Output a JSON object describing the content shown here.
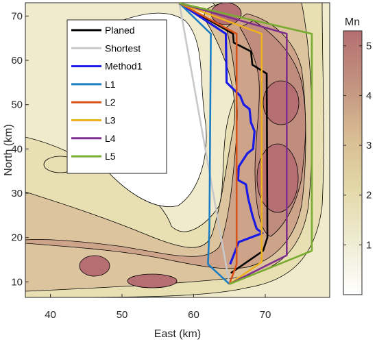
{
  "chart_data": {
    "type": "contour",
    "xlabel": "East (km)",
    "ylabel": "North (km)",
    "xlim": [
      36.5,
      79
    ],
    "ylim": [
      6.5,
      73
    ],
    "xticks": [
      40,
      50,
      60,
      70
    ],
    "yticks": [
      10,
      20,
      30,
      40,
      50,
      60,
      70
    ],
    "colorbar": {
      "label": "Mn",
      "range": [
        0,
        5.3
      ],
      "ticks": [
        1,
        2,
        3,
        4,
        5
      ],
      "colors": [
        "#ffffff",
        "#efecd3",
        "#e3d8a8",
        "#d3b690",
        "#bc8a7d",
        "#b56f72"
      ]
    },
    "series": [
      {
        "name": "Planed",
        "color": "#000000",
        "x": [
          58,
          65.5,
          65.6,
          68,
          68.2,
          70.2,
          70.3,
          69.7,
          65.2
        ],
        "y": [
          72.9,
          66,
          64,
          62,
          59,
          57,
          20,
          17,
          12
        ]
      },
      {
        "name": "Shortest",
        "color": "#c8c8c8",
        "x": [
          58,
          65
        ],
        "y": [
          72.9,
          9.5
        ]
      },
      {
        "name": "Method1",
        "color": "#1a1ae6",
        "x": [
          58,
          64.5,
          64.6,
          66.5,
          67,
          67.8,
          68,
          68.5,
          68.3,
          67.5,
          66.3,
          66.2,
          67.3,
          67.6,
          68.2,
          68.8,
          69.6,
          66.3,
          65.1
        ],
        "y": [
          72.9,
          66,
          55,
          52,
          50,
          49,
          46,
          44,
          40,
          39,
          36,
          33,
          32,
          29,
          25,
          22,
          21,
          19,
          14
        ]
      },
      {
        "name": "L1",
        "color": "#1a7dc2",
        "x": [
          58,
          62.4,
          62.2,
          62,
          65
        ],
        "y": [
          72.9,
          66,
          22,
          14,
          9.5
        ]
      },
      {
        "name": "L2",
        "color": "#d95319",
        "x": [
          58,
          66,
          66,
          65
        ],
        "y": [
          72.9,
          66,
          14,
          9.5
        ]
      },
      {
        "name": "L3",
        "color": "#edb120",
        "x": [
          58,
          69.5,
          69.5,
          65
        ],
        "y": [
          72.9,
          66,
          14.5,
          9.5
        ]
      },
      {
        "name": "L4",
        "color": "#7e2f8e",
        "x": [
          58,
          73,
          73,
          65
        ],
        "y": [
          72.9,
          66,
          16,
          9.5
        ]
      },
      {
        "name": "L5",
        "color": "#77ac30",
        "x": [
          58,
          76.5,
          76.5,
          65
        ],
        "y": [
          72.9,
          66,
          17,
          9.5
        ]
      }
    ]
  }
}
